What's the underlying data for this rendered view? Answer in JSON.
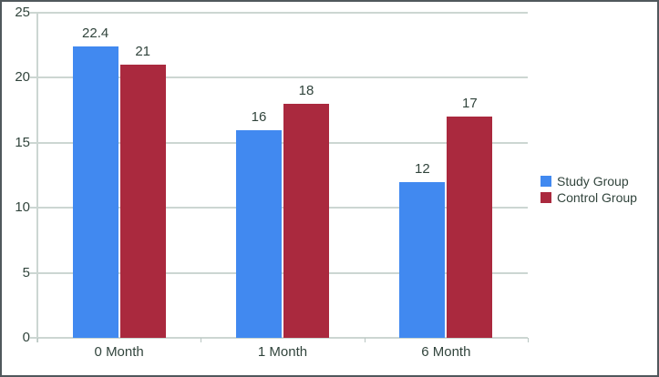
{
  "chart_data": {
    "type": "bar",
    "title": "",
    "xlabel": "",
    "ylabel": "",
    "categories": [
      "0 Month",
      "1 Month",
      "6 Month"
    ],
    "series": [
      {
        "name": "Study Group",
        "color": "#4189f0",
        "values": [
          22.4,
          16,
          12
        ],
        "value_labels": [
          "22.4",
          "16",
          "12"
        ]
      },
      {
        "name": "Control Group",
        "color": "#aa293e",
        "values": [
          21,
          18,
          17
        ],
        "value_labels": [
          "21",
          "18",
          "17"
        ]
      }
    ],
    "ylim": [
      0,
      25
    ],
    "yticks": [
      0,
      5,
      10,
      15,
      20,
      25
    ],
    "grid": true,
    "legend_position": "right"
  }
}
